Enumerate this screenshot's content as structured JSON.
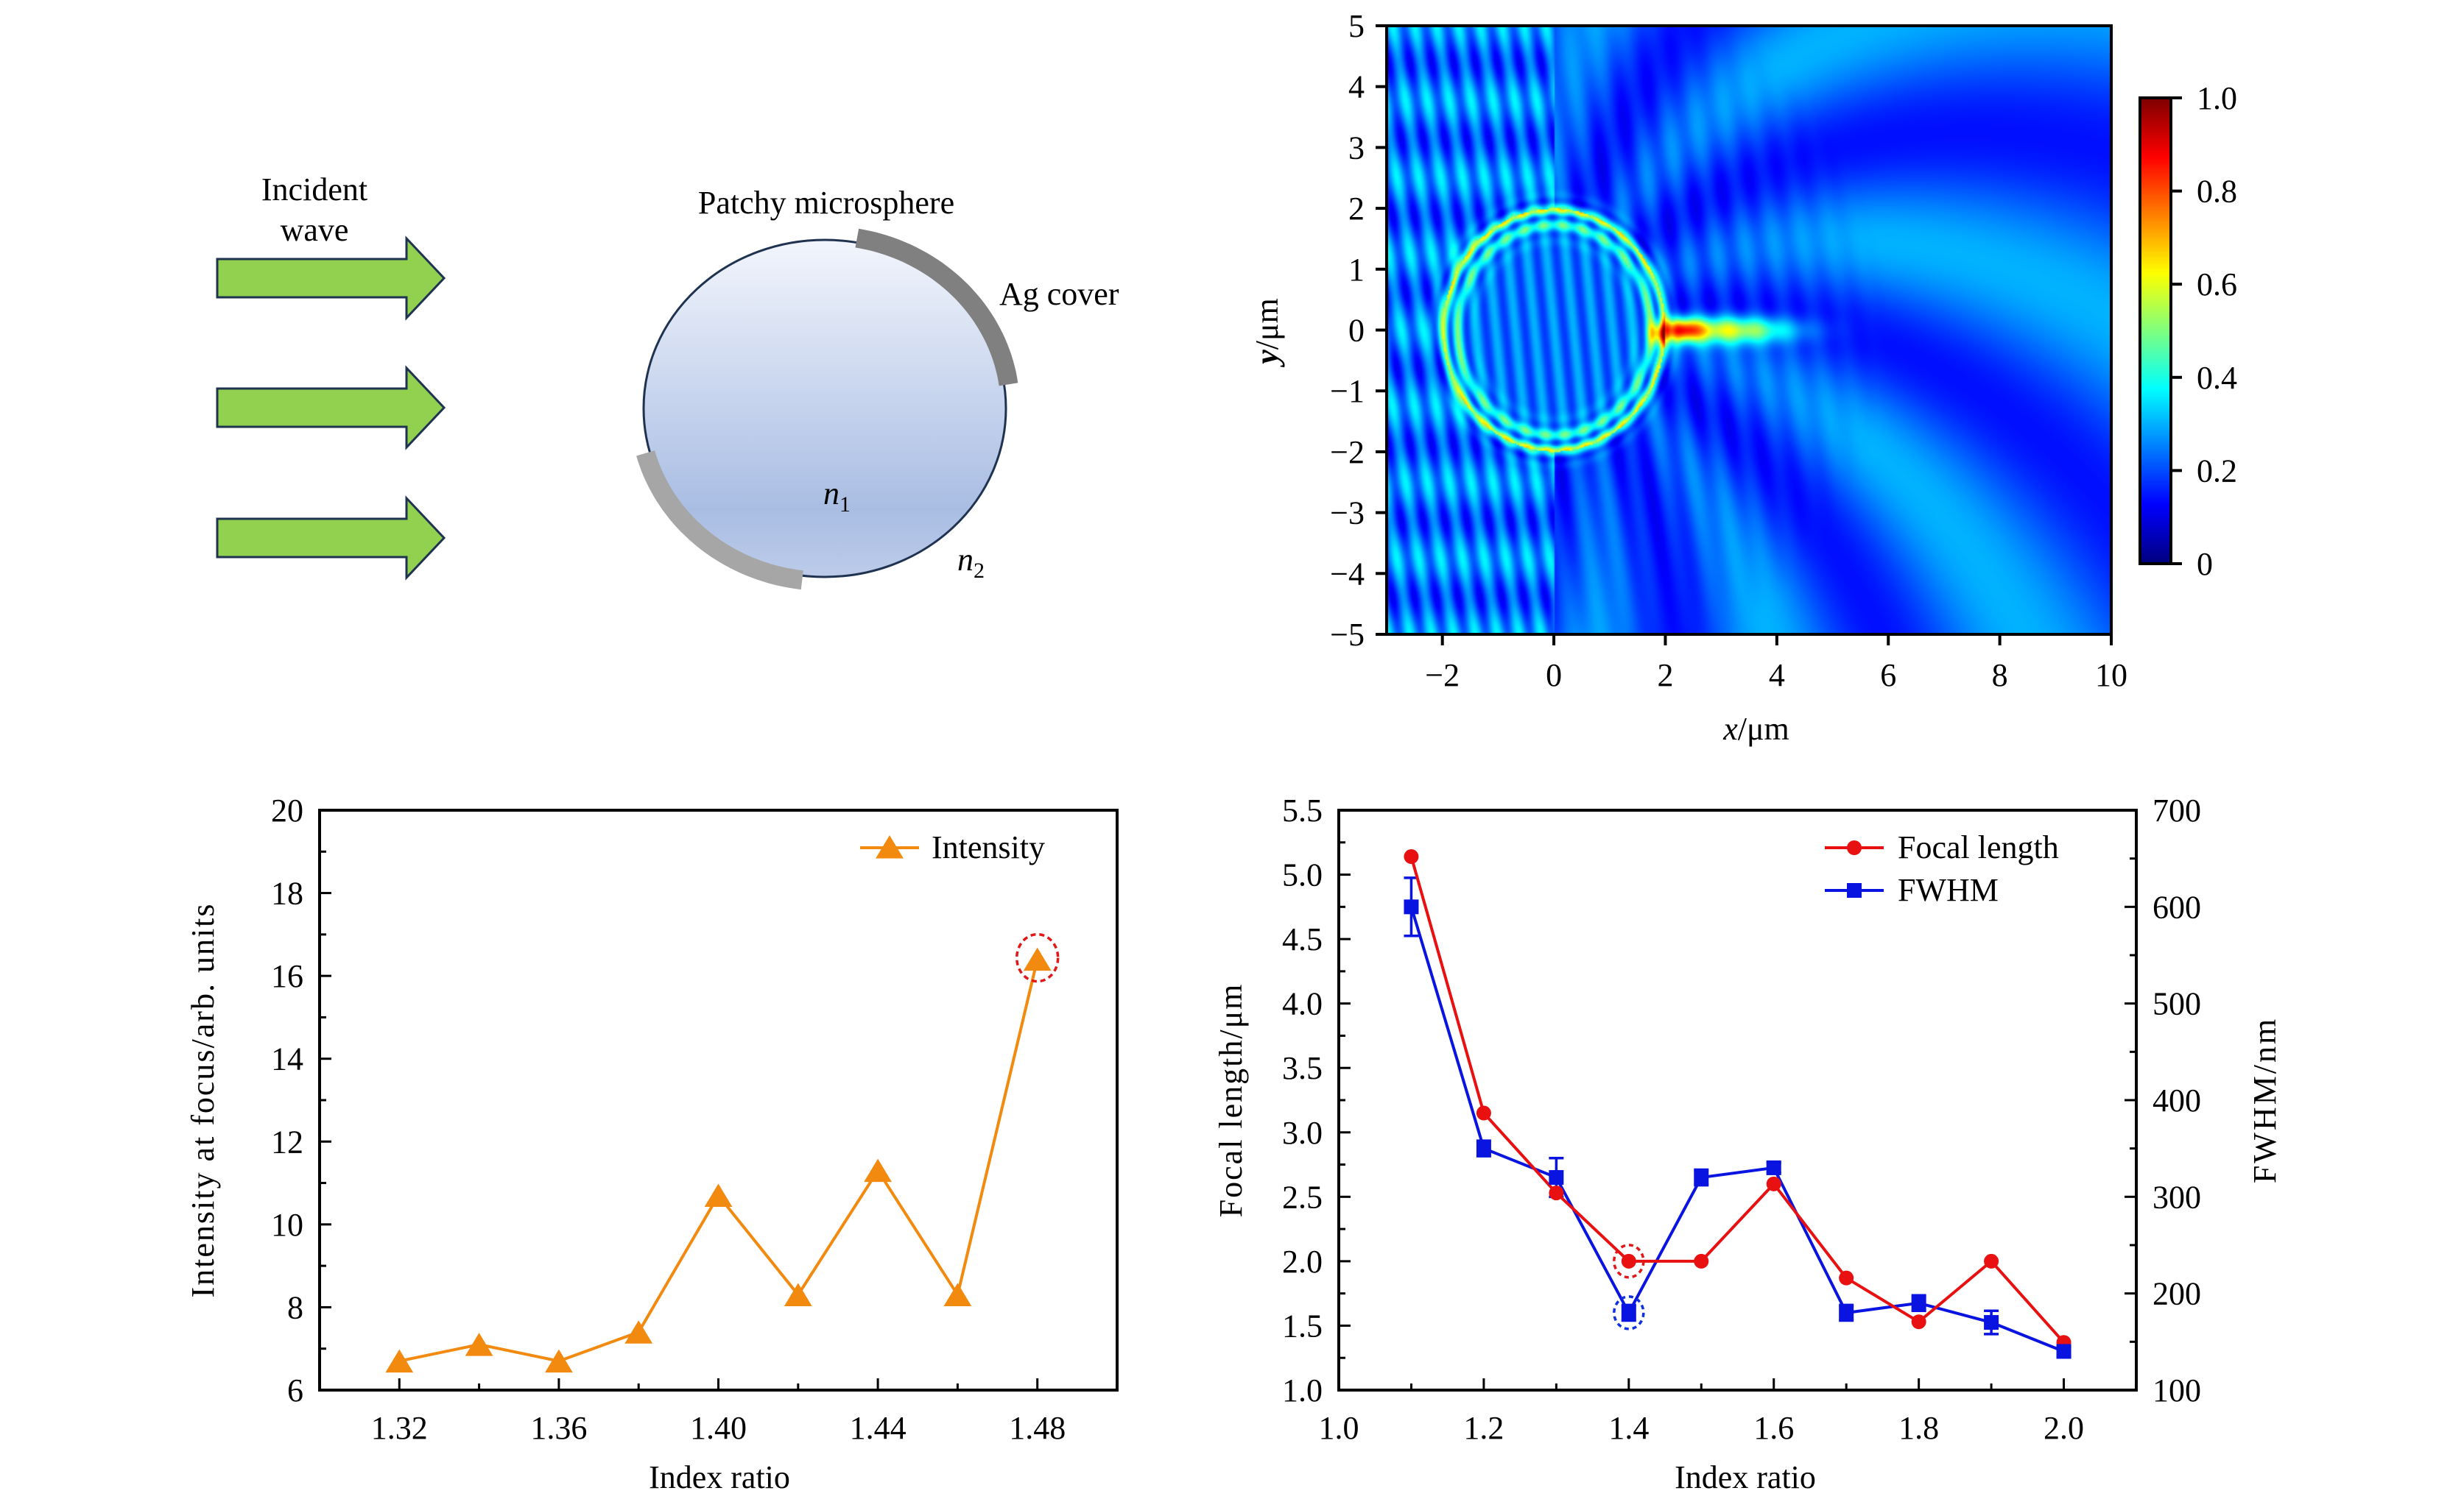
{
  "schematic": {
    "incident_label_line1": "Incident",
    "incident_label_line2": "wave",
    "sphere_label": "Patchy microsphere",
    "cover_label": "Ag cover",
    "n1_label": "n",
    "n1_sub": "1",
    "n2_label": "n",
    "n2_sub": "2",
    "arrow_count": 3,
    "colors": {
      "arrow_fill": "#92d050",
      "arrow_stroke": "#1f3350",
      "sphere_top": "#f2f5fc",
      "sphere_bottom": "#a9bde3",
      "sphere_stroke": "#1f3350",
      "cover_upper": "#808080",
      "cover_lower": "#a6a6a6"
    }
  },
  "chart_data": [
    {
      "id": "field-map",
      "type": "heatmap",
      "title": "",
      "xlabel_var": "x",
      "xlabel_unit": "/μm",
      "ylabel_var": "y",
      "ylabel_unit": "/μm",
      "xlim": [
        -3,
        10
      ],
      "ylim": [
        -5,
        5
      ],
      "xticks": [
        -2,
        0,
        2,
        4,
        6,
        8,
        10
      ],
      "xtick_labels": [
        "−2",
        "0",
        "2",
        "4",
        "6",
        "8",
        "10"
      ],
      "yticks": [
        5,
        4,
        3,
        2,
        1,
        0,
        -1,
        -2,
        -3,
        -4,
        -5
      ],
      "ytick_labels": [
        "5",
        "4",
        "3",
        "2",
        "1",
        "0",
        "−1",
        "−2",
        "−3",
        "−4",
        "−5"
      ],
      "colormap": "jet",
      "colorbar": {
        "range": [
          0,
          1.0
        ],
        "ticks": [
          1.0,
          0.8,
          0.6,
          0.4,
          0.2,
          0
        ],
        "tick_labels": [
          "1.0",
          "0.8",
          "0.6",
          "0.4",
          "0.2",
          "0"
        ]
      },
      "features": {
        "sphere_center": [
          0,
          0
        ],
        "sphere_radius": 2,
        "focal_spot_x_range": [
          2,
          4.5
        ],
        "focal_spot_y": 0,
        "peak_value_x": 2,
        "focal_spot_value": 0.6
      }
    },
    {
      "id": "intensity-chart",
      "type": "line",
      "title": "",
      "xlabel": "Index ratio",
      "ylabel": "Intensity at focus/arb. units",
      "xlim": [
        1.3,
        1.5
      ],
      "ylim": [
        6,
        20
      ],
      "xticks": [
        1.32,
        1.36,
        1.4,
        1.44,
        1.48
      ],
      "xtick_labels": [
        "1.32",
        "1.36",
        "1.40",
        "1.44",
        "1.48"
      ],
      "xminor": [
        1.34,
        1.38,
        1.42,
        1.46
      ],
      "yticks": [
        6,
        8,
        10,
        12,
        14,
        16,
        18,
        20
      ],
      "ytick_labels": [
        "6",
        "8",
        "10",
        "12",
        "14",
        "16",
        "18",
        "20"
      ],
      "yminor": [
        7,
        9,
        11,
        13,
        15,
        17,
        19
      ],
      "legend_position": "top-right",
      "grid": false,
      "series": [
        {
          "name": "Intensity",
          "color": "#f28a10",
          "marker": "triangle",
          "x": [
            1.32,
            1.34,
            1.36,
            1.38,
            1.4,
            1.42,
            1.44,
            1.46,
            1.48
          ],
          "values": [
            6.7,
            7.1,
            6.7,
            7.4,
            10.7,
            8.3,
            11.3,
            8.3,
            16.4
          ]
        }
      ],
      "annotations": [
        {
          "type": "dashed-circle",
          "x": 1.48,
          "y": 16.4,
          "color": "#e01818"
        }
      ]
    },
    {
      "id": "focal-fwhm-chart",
      "type": "line",
      "title": "",
      "xlabel": "Index ratio",
      "ylabel": "Focal length/μm",
      "ylabel_right": "FWHM/nm",
      "xlim": [
        1.0,
        2.1
      ],
      "ylim": [
        1.0,
        5.5
      ],
      "ylim_right": [
        100,
        700
      ],
      "xticks": [
        1.0,
        1.2,
        1.4,
        1.6,
        1.8,
        2.0
      ],
      "xtick_labels": [
        "1.0",
        "1.2",
        "1.4",
        "1.6",
        "1.8",
        "2.0"
      ],
      "xminor": [
        1.1,
        1.3,
        1.5,
        1.7,
        1.9
      ],
      "yticks": [
        1.0,
        1.5,
        2.0,
        2.5,
        3.0,
        3.5,
        4.0,
        4.5,
        5.0,
        5.5
      ],
      "ytick_labels": [
        "1.0",
        "1.5",
        "2.0",
        "2.5",
        "3.0",
        "3.5",
        "4.0",
        "4.5",
        "5.0",
        "5.5"
      ],
      "yminor": [
        1.25,
        1.75,
        2.25,
        2.75,
        3.25,
        3.75,
        4.25,
        4.75,
        5.25
      ],
      "yticks_right": [
        100,
        200,
        300,
        400,
        500,
        600,
        700
      ],
      "ytick_labels_right": [
        "100",
        "200",
        "300",
        "400",
        "500",
        "600",
        "700"
      ],
      "yminor_right": [
        150,
        250,
        350,
        450,
        550,
        650
      ],
      "legend_position": "top-right",
      "grid": false,
      "series": [
        {
          "name": "Focal length",
          "axis": "left",
          "color": "#e81010",
          "marker": "circle",
          "x": [
            1.1,
            1.2,
            1.3,
            1.4,
            1.5,
            1.6,
            1.7,
            1.8,
            1.9,
            2.0
          ],
          "values": [
            5.14,
            3.15,
            2.53,
            2.0,
            2.0,
            2.6,
            1.87,
            1.53,
            2.0,
            1.37
          ]
        },
        {
          "name": "FWHM",
          "axis": "right",
          "color": "#0a14e0",
          "marker": "square",
          "x": [
            1.1,
            1.2,
            1.3,
            1.4,
            1.5,
            1.6,
            1.7,
            1.8,
            1.9,
            2.0
          ],
          "values": [
            600,
            350,
            320,
            180,
            320,
            330,
            180,
            190,
            170,
            140
          ],
          "error": [
            30,
            8,
            20,
            8,
            8,
            5,
            8,
            8,
            12,
            5
          ]
        }
      ],
      "annotations": [
        {
          "type": "dashed-circle",
          "series": "Focal length",
          "x": 1.4,
          "y": 2.0,
          "color": "#e01818"
        },
        {
          "type": "dashed-circle",
          "series": "FWHM",
          "x": 1.4,
          "y": 180,
          "color": "#1030e0"
        }
      ]
    }
  ]
}
